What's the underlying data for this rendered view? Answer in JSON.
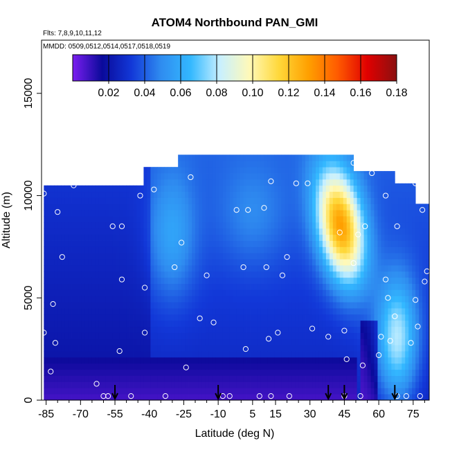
{
  "chart_data": {
    "type": "heatmap",
    "title": "ATOM4 Northbound PAN_GMI",
    "annotations": {
      "flights": "Flts: 7,8,9,10,11,12",
      "dates": "MMDD: 0509,0512,0514,0517,0518,0519"
    },
    "xlabel": "Latitude (deg N)",
    "ylabel": "Altitude (m)",
    "xlim": [
      -87,
      82
    ],
    "ylim": [
      0,
      17600
    ],
    "x_ticks": [
      -85,
      -70,
      -55,
      -40,
      -25,
      -10,
      5,
      15,
      30,
      45,
      60,
      75
    ],
    "x_tick_labels": [
      "-85",
      "-70",
      "-55",
      "-40",
      "-25",
      "-10",
      "5",
      "15",
      "30",
      "45",
      "60",
      "75"
    ],
    "x_minor_ticks": [
      -80,
      -75,
      -65,
      -60,
      -50,
      -45,
      -35,
      -30,
      -20,
      -15,
      -5,
      0,
      10,
      20,
      25,
      35,
      40,
      50,
      55,
      65,
      70,
      80
    ],
    "y_ticks": [
      0,
      5000,
      10000,
      15000
    ],
    "y_tick_labels": [
      "0",
      "5000",
      "10000",
      "15000"
    ],
    "colorbar": {
      "ticks": [
        0.02,
        0.04,
        0.06,
        0.08,
        0.1,
        0.12,
        0.14,
        0.16,
        0.18
      ],
      "tick_labels": [
        "0.02",
        "0.04",
        "0.06",
        "0.08",
        "0.10",
        "0.12",
        "0.14",
        "0.16",
        "0.18"
      ],
      "range": [
        0.0,
        0.18
      ],
      "colors": [
        "#7b1ef0",
        "#0a0a9a",
        "#1238d8",
        "#2f8cf0",
        "#33b8ff",
        "#c8f0ff",
        "#fff9b8",
        "#ffd83a",
        "#ffa000",
        "#ff5a00",
        "#e00000",
        "#8a1010"
      ]
    },
    "profile_endpoints_lat": [
      -55,
      -10,
      38,
      45,
      67
    ],
    "sample_points": [
      [
        -86,
        10100
      ],
      [
        -86,
        3300
      ],
      [
        -83,
        1400
      ],
      [
        -82,
        4700
      ],
      [
        -81,
        2800
      ],
      [
        -80,
        9200
      ],
      [
        -78,
        7000
      ],
      [
        -73,
        10500
      ],
      [
        -63,
        800
      ],
      [
        -60,
        200
      ],
      [
        -58,
        200
      ],
      [
        -56,
        8500
      ],
      [
        -53,
        2400
      ],
      [
        -52,
        5900
      ],
      [
        -52,
        8500
      ],
      [
        -48,
        200
      ],
      [
        -44,
        10000
      ],
      [
        -42,
        3300
      ],
      [
        -42,
        5500
      ],
      [
        -38,
        10300
      ],
      [
        -33,
        200
      ],
      [
        -29,
        6500
      ],
      [
        -26,
        7700
      ],
      [
        -22,
        10900
      ],
      [
        -24,
        1600
      ],
      [
        -18,
        4000
      ],
      [
        -15,
        6100
      ],
      [
        -12,
        3800
      ],
      [
        -8,
        200
      ],
      [
        -5,
        200
      ],
      [
        -2,
        9300
      ],
      [
        1,
        6500
      ],
      [
        2,
        2500
      ],
      [
        3,
        9300
      ],
      [
        8,
        200
      ],
      [
        10,
        9400
      ],
      [
        11,
        6500
      ],
      [
        12,
        3000
      ],
      [
        13,
        10700
      ],
      [
        13,
        200
      ],
      [
        16,
        3300
      ],
      [
        18,
        6100
      ],
      [
        20,
        7000
      ],
      [
        21,
        200
      ],
      [
        24,
        10600
      ],
      [
        29,
        10600
      ],
      [
        31,
        3500
      ],
      [
        38,
        3100
      ],
      [
        43,
        8200
      ],
      [
        45,
        200
      ],
      [
        45,
        3400
      ],
      [
        46,
        2000
      ],
      [
        49,
        11600
      ],
      [
        49,
        6700
      ],
      [
        51,
        8100
      ],
      [
        52,
        200
      ],
      [
        53,
        1700
      ],
      [
        54,
        8500
      ],
      [
        57,
        11100
      ],
      [
        60,
        2200
      ],
      [
        61,
        3100
      ],
      [
        63,
        5900
      ],
      [
        63,
        10000
      ],
      [
        64,
        5000
      ],
      [
        65,
        2900
      ],
      [
        67,
        4100
      ],
      [
        68,
        200
      ],
      [
        68,
        8500
      ],
      [
        70,
        10800
      ],
      [
        72,
        200
      ],
      [
        74,
        2800
      ],
      [
        76,
        10600
      ],
      [
        76,
        4900
      ],
      [
        77,
        3600
      ],
      [
        78,
        200
      ],
      [
        79,
        9300
      ],
      [
        80,
        5800
      ],
      [
        81,
        6300
      ]
    ]
  }
}
